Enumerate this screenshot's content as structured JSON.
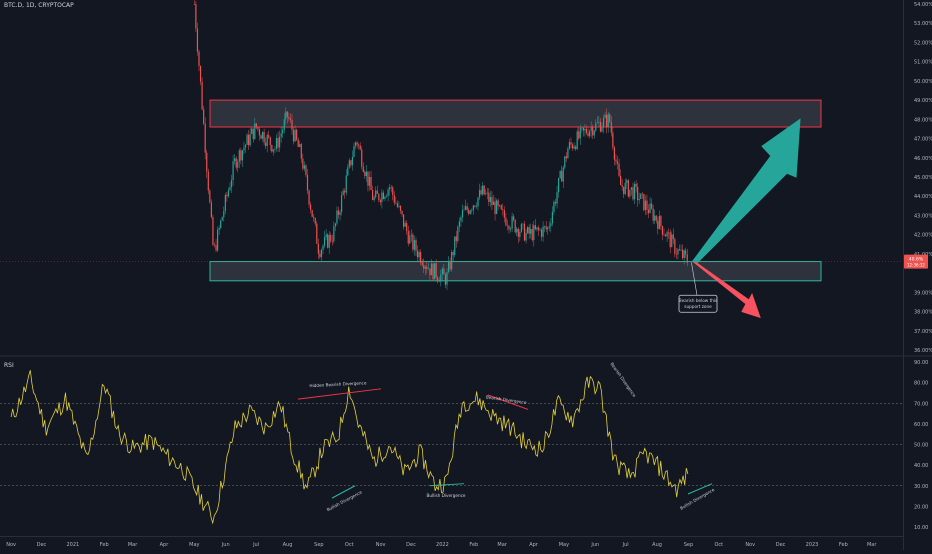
{
  "header": {
    "symbol_line": "BTC.D, 1D, CRYPTOCAP"
  },
  "rsi_panel": {
    "title": "RSI"
  },
  "price_badge": {
    "value": "40.6%",
    "countdown": "12:36:32"
  },
  "colors": {
    "background": "#131722",
    "up": "#26a69a",
    "down": "#ef5350",
    "resistance_box": "#f23645",
    "support_box": "#2bb7a3",
    "rsi_line": "#e3d13c",
    "rsi_levels": "#787b86",
    "arrow_up": "#26a69a",
    "arrow_down": "#f7525f",
    "axis_text": "#b2b5be"
  },
  "icons": [
    "arrow-up-icon",
    "arrow-down-icon"
  ],
  "chart_data": [
    {
      "type": "candlestick",
      "title": "BTC.D, 1D, CRYPTOCAP",
      "y_axis_ticks": [
        "54.00%",
        "53.00%",
        "52.00%",
        "51.00%",
        "50.00%",
        "49.00%",
        "48.00%",
        "47.00%",
        "46.00%",
        "45.00%",
        "44.00%",
        "43.00%",
        "42.00%",
        "41.00%",
        "39.00%",
        "38.00%",
        "37.00%",
        "36.00%"
      ],
      "ylim": [
        36.0,
        54.0
      ],
      "series": [
        {
          "name": "BTC.D",
          "x": [
            "2021-05-01",
            "2021-05-20",
            "2021-06-10",
            "2021-07-01",
            "2021-07-20",
            "2021-08-01",
            "2021-08-15",
            "2021-09-01",
            "2021-09-15",
            "2021-10-01",
            "2021-10-08",
            "2021-10-25",
            "2021-11-10",
            "2021-12-01",
            "2021-12-20",
            "2022-01-05",
            "2022-01-20",
            "2022-02-10",
            "2022-03-01",
            "2022-03-25",
            "2022-04-15",
            "2022-05-05",
            "2022-05-25",
            "2022-06-15",
            "2022-06-25",
            "2022-07-10",
            "2022-08-01",
            "2022-08-20",
            "2022-09-01"
          ],
          "values": [
            54.0,
            41.0,
            45.8,
            47.6,
            46.5,
            48.2,
            46.0,
            41.2,
            42.0,
            45.5,
            47.0,
            43.8,
            44.5,
            41.6,
            40.2,
            39.7,
            43.0,
            44.2,
            43.0,
            42.0,
            42.3,
            46.5,
            47.5,
            48.0,
            44.6,
            44.2,
            42.8,
            41.2,
            40.6
          ]
        }
      ],
      "annotations": [
        {
          "type": "zone",
          "name": "resistance",
          "range": [
            47.6,
            49.0
          ]
        },
        {
          "type": "zone",
          "name": "support",
          "range": [
            39.6,
            40.6
          ]
        },
        {
          "type": "callout",
          "text": "Bearish below this support zone"
        }
      ]
    },
    {
      "type": "line",
      "title": "RSI",
      "y_axis_ticks": [
        "90.00",
        "80.00",
        "70.00",
        "60.00",
        "50.00",
        "40.00",
        "30.00",
        "20.00",
        "10.00"
      ],
      "ylim": [
        10,
        90
      ],
      "levels": [
        70,
        50,
        30
      ],
      "series": [
        {
          "name": "RSI",
          "x": [
            "2020-11-01",
            "2020-11-20",
            "2020-12-05",
            "2020-12-25",
            "2021-01-15",
            "2021-02-01",
            "2021-02-15",
            "2021-03-01",
            "2021-03-20",
            "2021-04-05",
            "2021-04-20",
            "2021-05-10",
            "2021-05-20",
            "2021-06-10",
            "2021-06-25",
            "2021-07-10",
            "2021-07-25",
            "2021-08-05",
            "2021-08-20",
            "2021-09-05",
            "2021-09-20",
            "2021-10-01",
            "2021-10-10",
            "2021-10-25",
            "2021-11-10",
            "2021-11-25",
            "2021-12-10",
            "2021-12-25",
            "2022-01-05",
            "2022-01-20",
            "2022-02-05",
            "2022-02-20",
            "2022-03-10",
            "2022-03-25",
            "2022-04-10",
            "2022-04-25",
            "2022-05-10",
            "2022-05-25",
            "2022-06-05",
            "2022-06-20",
            "2022-07-05",
            "2022-07-20",
            "2022-08-05",
            "2022-08-20",
            "2022-09-01"
          ],
          "values": [
            62,
            82,
            58,
            72,
            42,
            80,
            56,
            48,
            52,
            44,
            38,
            22,
            14,
            58,
            66,
            58,
            70,
            48,
            28,
            48,
            54,
            78,
            60,
            42,
            50,
            36,
            46,
            30,
            32,
            70,
            72,
            64,
            58,
            50,
            48,
            70,
            62,
            80,
            78,
            42,
            34,
            46,
            38,
            28,
            36
          ]
        }
      ],
      "annotations": [
        {
          "text": "Hidden Bearish Divergence"
        },
        {
          "text": "Bullish Divergence"
        },
        {
          "text": "Bullish Divergence"
        },
        {
          "text": "Bearish Divergence"
        },
        {
          "text": "Bearish Divergence"
        },
        {
          "text": "Bullish Divergence"
        }
      ]
    }
  ],
  "x_axis": {
    "labels": [
      "Nov",
      "Dec",
      "2021",
      "Feb",
      "Mar",
      "Apr",
      "May",
      "Jun",
      "Jul",
      "Aug",
      "Sep",
      "Oct",
      "Nov",
      "Dec",
      "2022",
      "Feb",
      "Mar",
      "Apr",
      "May",
      "Jun",
      "Jul",
      "Aug",
      "Sep",
      "Oct",
      "Nov",
      "Dec",
      "2023",
      "Feb",
      "Mar"
    ]
  },
  "callout": {
    "line1": "Bearish below this",
    "line2": "support zone"
  },
  "divergence_labels": [
    "Hidden Bearish Divergence",
    "Bullish Divergence",
    "Bullish Divergence",
    "Bearish Divergence",
    "Bearish Divergence",
    "Bullish Divergence"
  ]
}
